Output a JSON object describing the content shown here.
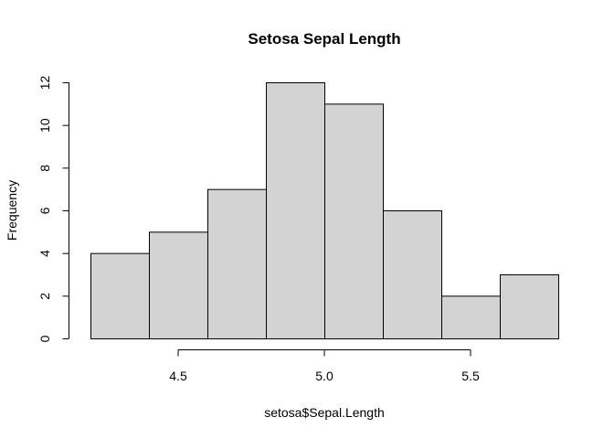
{
  "chart_data": {
    "type": "bar",
    "title": "Setosa Sepal Length",
    "xlabel": "setosa$Sepal.Length",
    "ylabel": "Frequency",
    "bins": [
      {
        "start": 4.2,
        "end": 4.4,
        "count": 4
      },
      {
        "start": 4.4,
        "end": 4.6,
        "count": 5
      },
      {
        "start": 4.6,
        "end": 4.8,
        "count": 7
      },
      {
        "start": 4.8,
        "end": 5.0,
        "count": 12
      },
      {
        "start": 5.0,
        "end": 5.2,
        "count": 11
      },
      {
        "start": 5.2,
        "end": 5.4,
        "count": 6
      },
      {
        "start": 5.4,
        "end": 5.6,
        "count": 2
      },
      {
        "start": 5.6,
        "end": 5.8,
        "count": 3
      }
    ],
    "xticks": [
      "4.5",
      "5.0",
      "5.5"
    ],
    "yticks": [
      "0",
      "2",
      "4",
      "6",
      "8",
      "10",
      "12"
    ],
    "xlim": [
      4.2,
      5.8
    ],
    "ylim": [
      0,
      12
    ],
    "grid": false,
    "colors": {
      "bar_fill": "#d3d3d3",
      "bar_stroke": "#000000"
    }
  }
}
